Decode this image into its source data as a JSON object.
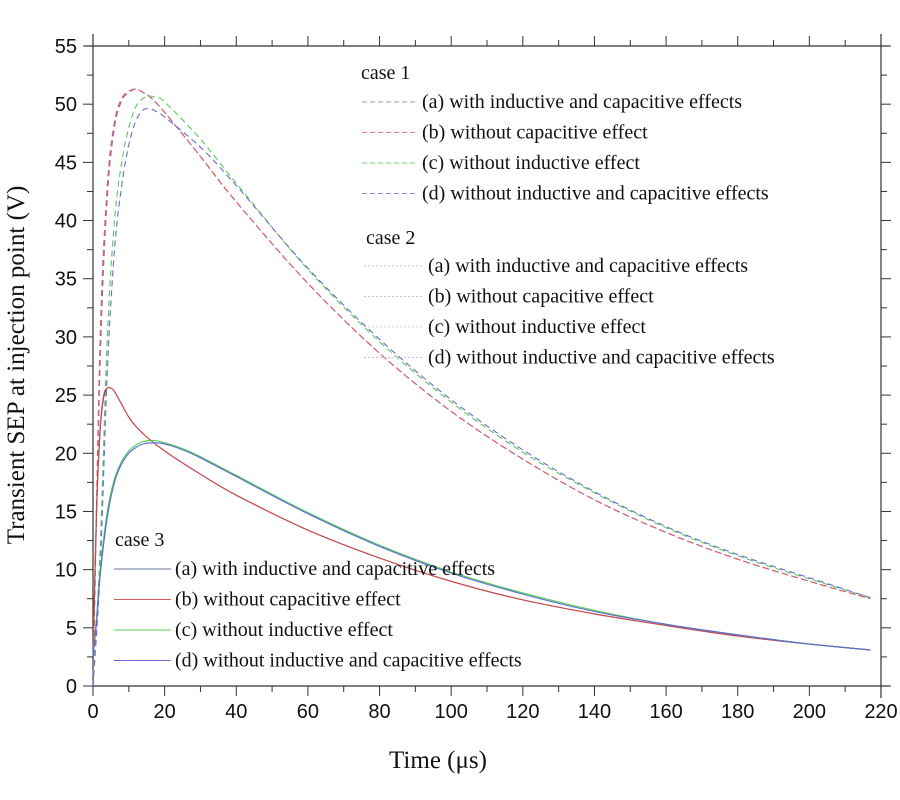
{
  "chart_data": {
    "type": "line",
    "title": "",
    "xlabel": "Time (μs)",
    "ylabel": "Transient SEP at injection point (V)",
    "xlim": [
      0,
      220
    ],
    "ylim": [
      0,
      55
    ],
    "x_ticks": [
      "0",
      "20",
      "40",
      "60",
      "80",
      "100",
      "120",
      "140",
      "160",
      "180",
      "200",
      "220"
    ],
    "y_ticks": [
      "0",
      "5",
      "10",
      "15",
      "20",
      "25",
      "30",
      "35",
      "40",
      "45",
      "50",
      "55"
    ],
    "grid": false,
    "legend_groups": [
      {
        "title": "case 1",
        "style": "dashed",
        "position": "top-right",
        "entries": [
          {
            "label": "(a) with inductive and capacitive effects",
            "color": "#b08ab8"
          },
          {
            "label": "(b) without capacitive effect",
            "color": "#e07a8a"
          },
          {
            "label": "(c) without inductive effect",
            "color": "#7fd67f"
          },
          {
            "label": "(d) without inductive and capacitive effects",
            "color": "#8a8ad8"
          }
        ]
      },
      {
        "title": "case 2",
        "style": "dotted",
        "position": "upper-right",
        "entries": [
          {
            "label": "(a) with inductive and capacitive effects",
            "color": "#c8b8d8"
          },
          {
            "label": "(b) without capacitive effect",
            "color": "#e8c0c8"
          },
          {
            "label": "(c) without inductive effect",
            "color": "#c0e8c0"
          },
          {
            "label": "(d) without inductive and capacitive effects",
            "color": "#c0c0e8"
          }
        ]
      },
      {
        "title": "case 3",
        "style": "solid",
        "position": "bottom-left",
        "entries": [
          {
            "label": "(a) with inductive and capacitive effects",
            "color": "#6a7a9a"
          },
          {
            "label": "(b) without capacitive effect",
            "color": "#d05a5a"
          },
          {
            "label": "(c) without inductive effect",
            "color": "#5ad05a"
          },
          {
            "label": "(d) without inductive and capacitive effects",
            "color": "#6a6ad8"
          }
        ]
      }
    ],
    "series": [
      {
        "name": "case 1 (a)",
        "style": "dashed",
        "color": "#8a6aa0",
        "x": [
          0,
          2,
          4,
          6,
          8,
          10,
          12,
          14,
          16,
          20,
          30,
          40,
          60,
          80,
          100,
          120,
          140,
          160,
          180,
          200,
          217
        ],
        "y": [
          0,
          28,
          42,
          48,
          50.3,
          51,
          51.3,
          51,
          50.6,
          49.3,
          45.5,
          41.6,
          34.6,
          28.6,
          23.6,
          19.5,
          16.0,
          13.2,
          10.9,
          9.0,
          7.5
        ]
      },
      {
        "name": "case 1 (b)",
        "style": "dashed",
        "color": "#e05a6a",
        "x": [
          0,
          2,
          4,
          6,
          8,
          10,
          12,
          14,
          16,
          20,
          30,
          40,
          60,
          80,
          100,
          120,
          140,
          160,
          180,
          200,
          217
        ],
        "y": [
          0,
          30,
          43,
          48.5,
          50.5,
          51.1,
          51.3,
          51,
          50.6,
          49.3,
          45.5,
          41.6,
          34.6,
          28.6,
          23.6,
          19.5,
          16.0,
          13.2,
          10.9,
          9.0,
          7.5
        ]
      },
      {
        "name": "case 1 (c)",
        "style": "dashed",
        "color": "#5ac85a",
        "x": [
          0,
          2,
          4,
          6,
          8,
          10,
          12,
          14,
          16,
          18,
          20,
          30,
          40,
          60,
          80,
          100,
          120,
          140,
          160,
          180,
          200,
          217
        ],
        "y": [
          0,
          12,
          30,
          40,
          45,
          48,
          49.8,
          50.5,
          50.7,
          50.5,
          50.2,
          47,
          43.2,
          35.8,
          29.6,
          24.4,
          20.1,
          16.6,
          13.6,
          11.2,
          9.2,
          7.6
        ]
      },
      {
        "name": "case 1 (d)",
        "style": "dashed",
        "color": "#6a6ad8",
        "x": [
          0,
          2,
          4,
          6,
          8,
          10,
          12,
          14,
          16,
          18,
          20,
          30,
          40,
          60,
          80,
          100,
          120,
          140,
          160,
          180,
          200,
          217
        ],
        "y": [
          0,
          10,
          27,
          37.5,
          43,
          46.5,
          48.6,
          49.5,
          49.6,
          49.3,
          48.9,
          46.3,
          43.0,
          35.9,
          29.8,
          24.6,
          20.3,
          16.7,
          13.7,
          11.3,
          9.3,
          7.6
        ]
      },
      {
        "name": "case 3 (a)",
        "style": "solid",
        "color": "#5a4a6a",
        "x": [
          0,
          1,
          2,
          3,
          4,
          5,
          6,
          8,
          10,
          12,
          15,
          20,
          30,
          40,
          60,
          80,
          100,
          120,
          140,
          160,
          180,
          200,
          217
        ],
        "y": [
          2.5,
          15,
          22,
          24.8,
          25.6,
          25.6,
          25.3,
          24.2,
          23.1,
          22.3,
          21.4,
          20.2,
          18.2,
          16.4,
          13.4,
          11.0,
          9.0,
          7.4,
          6.2,
          5.2,
          4.3,
          3.6,
          3.1
        ]
      },
      {
        "name": "case 3 (b)",
        "style": "solid",
        "color": "#d04a4a",
        "x": [
          0,
          1,
          2,
          3,
          4,
          5,
          6,
          8,
          10,
          12,
          15,
          20,
          30,
          40,
          60,
          80,
          100,
          120,
          140,
          160,
          180,
          200,
          217
        ],
        "y": [
          2.5,
          15.5,
          22.3,
          25,
          25.6,
          25.6,
          25.3,
          24.2,
          23.1,
          22.3,
          21.4,
          20.2,
          18.2,
          16.4,
          13.4,
          11.0,
          9.0,
          7.4,
          6.2,
          5.2,
          4.3,
          3.6,
          3.1
        ]
      },
      {
        "name": "case 3 (c)",
        "style": "solid",
        "color": "#4ac84a",
        "x": [
          0,
          1,
          2,
          4,
          6,
          8,
          10,
          12,
          14,
          17,
          20,
          25,
          30,
          40,
          60,
          80,
          100,
          120,
          140,
          160,
          180,
          200,
          217
        ],
        "y": [
          2.5,
          6,
          10,
          15,
          17.8,
          19.3,
          20.2,
          20.7,
          21,
          21.1,
          20.9,
          20.4,
          19.7,
          18.1,
          14.9,
          12.1,
          9.8,
          8.0,
          6.5,
          5.3,
          4.4,
          3.6,
          3.1
        ]
      },
      {
        "name": "case 3 (d)",
        "style": "solid",
        "color": "#5a6ad8",
        "x": [
          0,
          1,
          2,
          4,
          6,
          8,
          10,
          12,
          14,
          17,
          20,
          25,
          30,
          40,
          60,
          80,
          100,
          120,
          140,
          160,
          180,
          200,
          217
        ],
        "y": [
          2.5,
          5.5,
          9.5,
          14.5,
          17.5,
          19.1,
          20.0,
          20.5,
          20.8,
          20.9,
          20.8,
          20.3,
          19.6,
          18.0,
          14.8,
          12.0,
          9.7,
          7.9,
          6.4,
          5.3,
          4.4,
          3.6,
          3.1
        ]
      }
    ]
  }
}
